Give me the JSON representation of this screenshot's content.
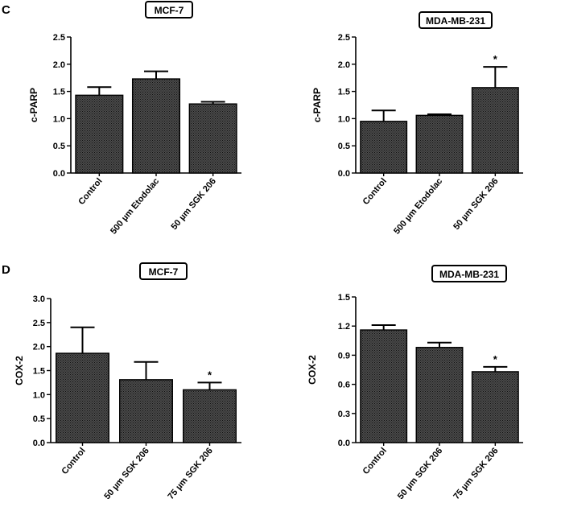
{
  "figure": {
    "panel_labels": [
      "C",
      "D"
    ]
  },
  "colors": {
    "bar_fill": "#4a4a4a",
    "bar_hatch": "#1a1a1a",
    "ink": "#000000"
  },
  "chart_data": [
    {
      "type": "bar",
      "panel": "C",
      "title": "MCF-7",
      "ylabel": "c-PARP",
      "xlabel": "",
      "categories": [
        "Control",
        "500 µm Etodolac",
        "50 µm SGK 206"
      ],
      "values": [
        1.43,
        1.73,
        1.27
      ],
      "errors": [
        0.15,
        0.14,
        0.04
      ],
      "significance": [
        "",
        "",
        ""
      ],
      "ylim": [
        0,
        2.5
      ],
      "yticks": [
        "0.0",
        "0.5",
        "1.0",
        "1.5",
        "2.0",
        "2.5"
      ],
      "grid": false
    },
    {
      "type": "bar",
      "panel": "C",
      "title": "MDA-MB-231",
      "ylabel": "c-PARP",
      "xlabel": "",
      "categories": [
        "Control",
        "500 µm Etodolac",
        "50 µm SGK 206"
      ],
      "values": [
        0.95,
        1.06,
        1.57
      ],
      "errors": [
        0.2,
        0.02,
        0.38
      ],
      "significance": [
        "",
        "",
        "*"
      ],
      "ylim": [
        0,
        2.5
      ],
      "yticks": [
        "0.0",
        "0.5",
        "1.0",
        "1.5",
        "2.0",
        "2.5"
      ],
      "grid": false
    },
    {
      "type": "bar",
      "panel": "D",
      "title": "MCF-7",
      "ylabel": "COX-2",
      "xlabel": "",
      "categories": [
        "Control",
        "50 µm SGK 206",
        "75 µm SGK 206"
      ],
      "values": [
        1.86,
        1.31,
        1.1
      ],
      "errors": [
        0.54,
        0.37,
        0.15
      ],
      "significance": [
        "",
        "",
        "*"
      ],
      "ylim": [
        0,
        3.0
      ],
      "yticks": [
        "0.0",
        "0.5",
        "1.0",
        "1.5",
        "2.0",
        "2.5",
        "3.0"
      ],
      "grid": false
    },
    {
      "type": "bar",
      "panel": "D",
      "title": "MDA-MB-231",
      "ylabel": "COX-2",
      "xlabel": "",
      "categories": [
        "Control",
        "50 µm SGK 206",
        "75 µm SGK 206"
      ],
      "values": [
        1.16,
        0.98,
        0.73
      ],
      "errors": [
        0.05,
        0.05,
        0.05
      ],
      "significance": [
        "",
        "",
        "*"
      ],
      "ylim": [
        0,
        1.5
      ],
      "yticks": [
        "0.0",
        "0.3",
        "0.6",
        "0.9",
        "1.2",
        "1.5"
      ],
      "grid": false
    }
  ]
}
